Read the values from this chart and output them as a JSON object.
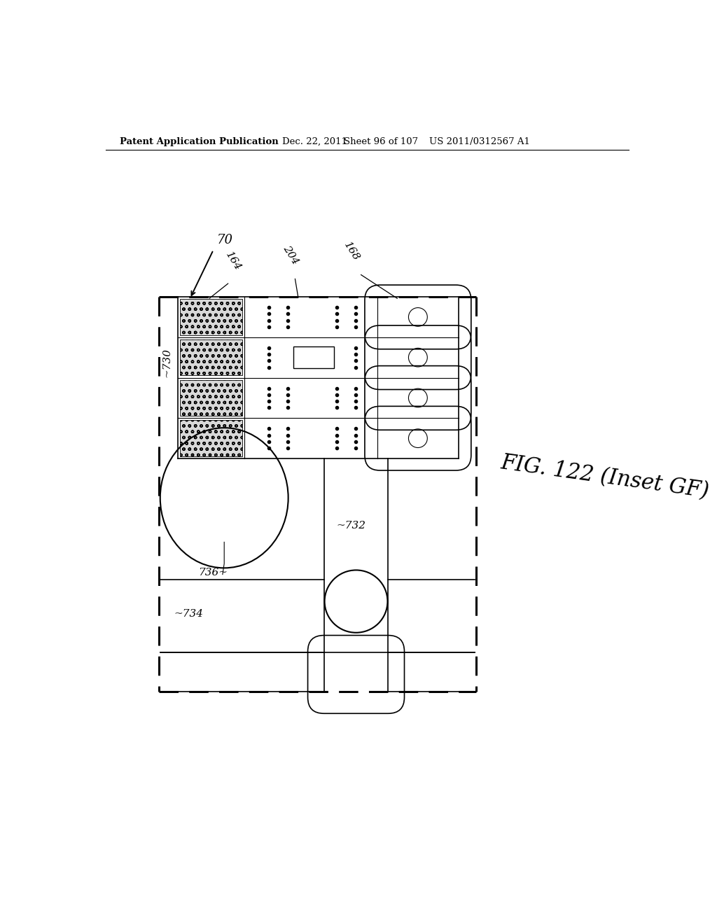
{
  "bg_color": "#ffffff",
  "header_text": "Patent Application Publication",
  "header_date": "Dec. 22, 2011",
  "header_sheet": "Sheet 96 of 107",
  "header_patent": "US 2011/0312567 A1",
  "fig_label": "FIG. 122 (Inset GF)",
  "ref_70": "70",
  "ref_164": "164",
  "ref_204": "204",
  "ref_168": "168",
  "ref_730": "~730",
  "ref_732": "~732",
  "ref_734": "~734",
  "ref_736": "736~"
}
